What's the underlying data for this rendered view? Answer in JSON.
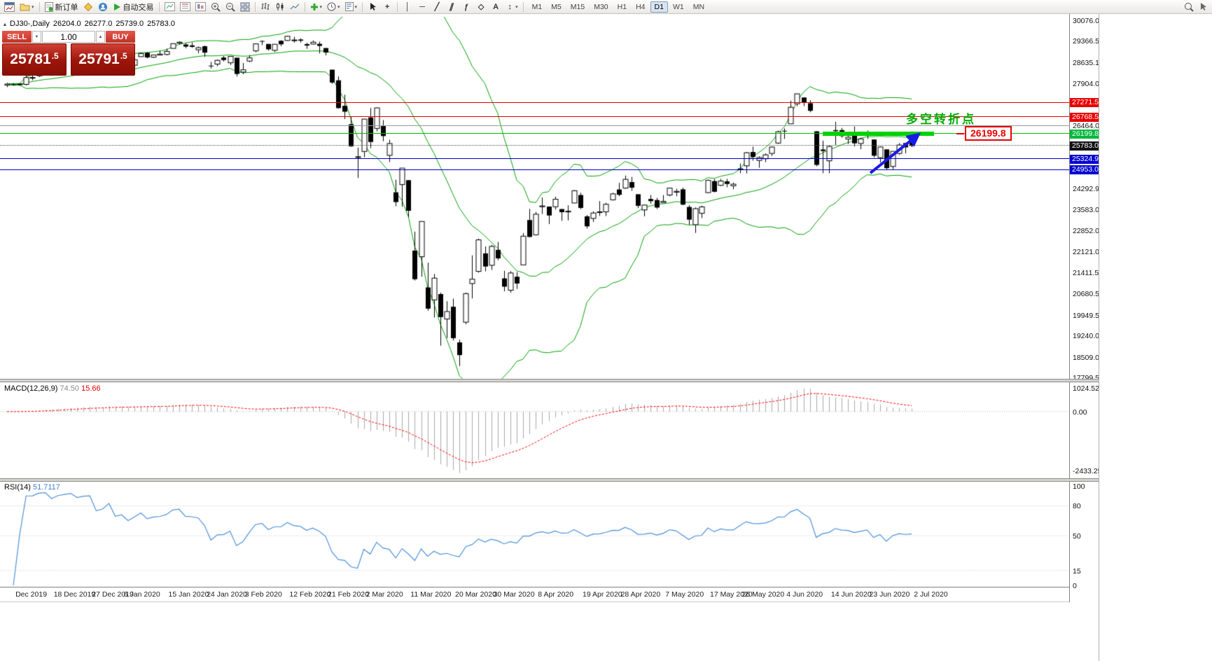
{
  "toolbar": {
    "new_order_label": "新订单",
    "auto_trading_label": "自动交易",
    "timeframes": [
      "M1",
      "M5",
      "M15",
      "M30",
      "H1",
      "H4",
      "D1",
      "W1",
      "MN"
    ],
    "active_timeframe": "D1"
  },
  "icons": {
    "caret": "▾",
    "crosshair": "+",
    "vertical_line": "│",
    "horizontal_line": "─",
    "trendline": "╱",
    "channel": "∥",
    "fibonacci": "ƒ",
    "ellipse": "◇",
    "text": "A",
    "arrows": "↕",
    "spinner_up": "▲",
    "spinner_down": "▼",
    "collapse": "▴"
  },
  "symbol": {
    "name": "DJ30-,Daily",
    "open": "26204.0",
    "high": "26277.0",
    "low": "25739.0",
    "close": "25783.0"
  },
  "trade_panel": {
    "sell_label": "SELL",
    "buy_label": "BUY",
    "volume": "1.00",
    "sell_price": "25781",
    "sell_price_frac": ".5",
    "buy_price": "25791",
    "buy_price_frac": ".5"
  },
  "price_scale": {
    "top": 30076.0,
    "bottom": 17799.5,
    "labels": [
      "30076.0",
      "29366.5",
      "28635.1",
      "27904.0",
      "26464.0",
      "24292.9",
      "23583.0",
      "22852.0",
      "22121.0",
      "21411.5",
      "20680.5",
      "19949.5",
      "19240.0",
      "18509.0",
      "17799.5"
    ],
    "line_labels": [
      {
        "text": "27271.5",
        "price": 27271.5,
        "bg": "#e80000"
      },
      {
        "text": "26768.5",
        "price": 26768.5,
        "bg": "#e80000"
      },
      {
        "text": "26199.8",
        "price": 26199.8,
        "bg": "#00b83c"
      },
      {
        "text": "25783.0",
        "price": 25783.0,
        "bg": "#111111"
      },
      {
        "text": "25324.9",
        "price": 25324.9,
        "bg": "#0000d0"
      },
      {
        "text": "24953.0",
        "price": 24953.0,
        "bg": "#0000d0"
      }
    ]
  },
  "hlines": [
    {
      "price": 27271.5,
      "color": "#e80000",
      "style": "solid",
      "width": 1
    },
    {
      "price": 26768.5,
      "color": "#e80000",
      "style": "solid",
      "width": 1
    },
    {
      "price": 26464.0,
      "color": "#9a9a9a",
      "style": "solid",
      "width": 1
    },
    {
      "price": 26199.8,
      "color": "#00c000",
      "style": "solid",
      "width": 1
    },
    {
      "price": 25783.0,
      "color": "#555555",
      "style": "dotted",
      "width": 1
    },
    {
      "price": 25324.9,
      "color": "#0000d0",
      "style": "solid",
      "width": 1
    },
    {
      "price": 24953.0,
      "color": "#0000d0",
      "style": "solid",
      "width": 1
    }
  ],
  "annotations": {
    "turning_point": {
      "text": "多空转折点",
      "color": "#00ad00"
    },
    "callout": {
      "text": "26199.8",
      "color": "#e80000"
    },
    "green_band": {
      "price": 26199.8,
      "start_index": 128,
      "end_index": 145.5,
      "color": "#00d200"
    },
    "arrow": {
      "start_index": 135.5,
      "start_price": 24850,
      "end_index": 142.9,
      "end_price": 26150,
      "color": "#1a1ae6"
    }
  },
  "macd": {
    "label": "MACD(12,26,9)",
    "value_main": "74.50",
    "value_signal": "15.66",
    "scale_max": "1024.52",
    "scale_zero": "0.00",
    "scale_min": "-2433.25",
    "fast": 12,
    "slow": 26,
    "signal": 9
  },
  "rsi": {
    "label": "RSI(14)",
    "value": "51.7117",
    "period": 14,
    "levels": [
      "100",
      "80",
      "50",
      "15",
      "0"
    ]
  },
  "dates": [
    {
      "label": "Dec 2019",
      "index": 1
    },
    {
      "label": "18 Dec 2019",
      "index": 7
    },
    {
      "label": "27 Dec 2019",
      "index": 13
    },
    {
      "label": "6 Jan 2020",
      "index": 18
    },
    {
      "label": "15 Jan 2020",
      "index": 25
    },
    {
      "label": "24 Jan 2020",
      "index": 31
    },
    {
      "label": "3 Feb 2020",
      "index": 37
    },
    {
      "label": "12 Feb 2020",
      "index": 44
    },
    {
      "label": "21 Feb 2020",
      "index": 50
    },
    {
      "label": "2 Mar 2020",
      "index": 56
    },
    {
      "label": "11 Mar 2020",
      "index": 63
    },
    {
      "label": "20 Mar 2020",
      "index": 70
    },
    {
      "label": "30 Mar 2020",
      "index": 76
    },
    {
      "label": "8 Apr 2020",
      "index": 83
    },
    {
      "label": "19 Apr 2020",
      "index": 90
    },
    {
      "label": "28 Apr 2020",
      "index": 96
    },
    {
      "label": "7 May 2020",
      "index": 103
    },
    {
      "label": "17 May 2020",
      "index": 110
    },
    {
      "label": "26 May 2020",
      "index": 115
    },
    {
      "label": "4 Jun 2020",
      "index": 122
    },
    {
      "label": "14 Jun 2020",
      "index": 129
    },
    {
      "label": "23 Jun 2020",
      "index": 135
    },
    {
      "label": "2 Jul 2020",
      "index": 142
    }
  ],
  "colors": {
    "bollinger": "#00a000",
    "candle_up_fill": "#ffffff",
    "candle_down_fill": "#000000",
    "candle_border": "#000000",
    "macd_hist": "#a9a9a9",
    "macd_signal": "#ff0000",
    "rsi_line": "#4a90d9"
  },
  "candles": [
    [
      27870,
      27950,
      27804,
      27909
    ],
    [
      27900,
      27940,
      27852,
      27881
    ],
    [
      27890,
      27930,
      27850,
      27911
    ],
    [
      27898,
      28225,
      27859,
      28132
    ],
    [
      28123,
      28291,
      28034,
      28135
    ],
    [
      28191,
      28337,
      28150,
      28235
    ],
    [
      28251,
      28338,
      28227,
      28267
    ],
    [
      28278,
      28323,
      28200,
      28239
    ],
    [
      28254,
      28414,
      28254,
      28376
    ],
    [
      28377,
      28480,
      28350,
      28455
    ],
    [
      28479,
      28592,
      28466,
      28551
    ],
    [
      28572,
      28576,
      28503,
      28515
    ],
    [
      28539,
      28624,
      28535,
      28621
    ],
    [
      28651,
      28701,
      28608,
      28645
    ],
    [
      28654,
      28664,
      28428,
      28462
    ],
    [
      28414,
      28547,
      28376,
      28538
    ],
    [
      28639,
      28872,
      28565,
      28868
    ],
    [
      28827,
      28876,
      28566,
      28634
    ],
    [
      28465,
      28708,
      28418,
      28703
    ],
    [
      28699,
      28716,
      28565,
      28583
    ],
    [
      28556,
      28774,
      28522,
      28745
    ],
    [
      28851,
      28988,
      28844,
      28956
    ],
    [
      28985,
      29009,
      28789,
      28823
    ],
    [
      28831,
      28914,
      28804,
      28907
    ],
    [
      28906,
      29054,
      28897,
      28939
    ],
    [
      28925,
      29128,
      28897,
      29030
    ],
    [
      29134,
      29300,
      29134,
      29297
    ],
    [
      29313,
      29374,
      29264,
      29348
    ],
    [
      29269,
      29320,
      29140,
      29196
    ],
    [
      29238,
      29338,
      29161,
      29186
    ],
    [
      29087,
      29200,
      28967,
      29160
    ],
    [
      29209,
      29230,
      28843,
      28989
    ],
    [
      28542,
      28671,
      28440,
      28535
    ],
    [
      28594,
      28750,
      28520,
      28722
    ],
    [
      28820,
      28873,
      28683,
      28734
    ],
    [
      28640,
      28874,
      28561,
      28859
    ],
    [
      28813,
      28813,
      28169,
      28256
    ],
    [
      28320,
      28630,
      28245,
      28399
    ],
    [
      28697,
      28905,
      28660,
      28807
    ],
    [
      29049,
      29308,
      29000,
      29290
    ],
    [
      29389,
      29408,
      29246,
      29379
    ],
    [
      29287,
      29287,
      29056,
      29102
    ],
    [
      29067,
      29277,
      29008,
      29276
    ],
    [
      29396,
      29415,
      29210,
      29276
    ],
    [
      29406,
      29568,
      29394,
      29551
    ],
    [
      29411,
      29535,
      29332,
      29423
    ],
    [
      29440,
      29481,
      29333,
      29398
    ],
    [
      29282,
      29330,
      29120,
      29232
    ],
    [
      29284,
      29409,
      29270,
      29348
    ],
    [
      29291,
      29368,
      28960,
      29220
    ],
    [
      29146,
      29146,
      28893,
      28992
    ],
    [
      28403,
      28403,
      27912,
      27960
    ],
    [
      28037,
      28170,
      27067,
      27081
    ],
    [
      27160,
      27542,
      26704,
      26958
    ],
    [
      26526,
      26775,
      25752,
      25766
    ],
    [
      25391,
      25724,
      24681,
      25409
    ],
    [
      25591,
      26706,
      25392,
      26703
    ],
    [
      26763,
      27085,
      25707,
      25917
    ],
    [
      26384,
      27102,
      26286,
      27090
    ],
    [
      26470,
      26671,
      25944,
      26121
    ],
    [
      25458,
      25994,
      25227,
      25864
    ],
    [
      24188,
      24620,
      23707,
      23851
    ],
    [
      24453,
      25020,
      23690,
      25018
    ],
    [
      24604,
      24604,
      23328,
      23553
    ],
    [
      22184,
      22837,
      21154,
      21200
    ],
    [
      21973,
      23189,
      21285,
      23185
    ],
    [
      20917,
      21768,
      20116,
      20188
    ],
    [
      20489,
      21379,
      19882,
      21237
    ],
    [
      20688,
      20738,
      18917,
      19898
    ],
    [
      19830,
      20442,
      19177,
      20087
    ],
    [
      20253,
      20531,
      19094,
      19173
    ],
    [
      19028,
      19121,
      18213,
      18591
    ],
    [
      19722,
      20737,
      19649,
      20704
    ],
    [
      21050,
      22019,
      20538,
      21200
    ],
    [
      21468,
      22595,
      21427,
      22552
    ],
    [
      22088,
      22327,
      21469,
      21636
    ],
    [
      21678,
      22378,
      21522,
      22327
    ],
    [
      22208,
      22482,
      21852,
      21917
    ],
    [
      21227,
      21487,
      20784,
      20943
    ],
    [
      20819,
      21477,
      20735,
      21413
    ],
    [
      21285,
      21443,
      20863,
      21052
    ],
    [
      21693,
      22783,
      21693,
      22679
    ],
    [
      23233,
      23618,
      22634,
      22653
    ],
    [
      22727,
      23513,
      22702,
      23433
    ],
    [
      23690,
      24009,
      23440,
      23719
    ],
    [
      23698,
      23698,
      23096,
      23390
    ],
    [
      23690,
      24040,
      23592,
      23949
    ],
    [
      23611,
      23612,
      23207,
      23504
    ],
    [
      23523,
      23741,
      23222,
      23537
    ],
    [
      23819,
      24264,
      23819,
      24242
    ],
    [
      24093,
      24170,
      23606,
      23650
    ],
    [
      23361,
      23406,
      22942,
      23018
    ],
    [
      23289,
      23533,
      23168,
      23475
    ],
    [
      23494,
      23885,
      23375,
      23515
    ],
    [
      23516,
      23828,
      23371,
      23775
    ],
    [
      23929,
      24171,
      23905,
      24133
    ],
    [
      24284,
      24512,
      24054,
      24101
    ],
    [
      24331,
      24764,
      24305,
      24633
    ],
    [
      24539,
      24717,
      24235,
      24345
    ],
    [
      24120,
      24120,
      23645,
      23723
    ],
    [
      23581,
      23762,
      23361,
      23749
    ],
    [
      23958,
      24094,
      23795,
      23883
    ],
    [
      23921,
      23994,
      23616,
      23664
    ],
    [
      23836,
      24094,
      23834,
      23875
    ],
    [
      24093,
      24349,
      24050,
      24331
    ],
    [
      24191,
      24307,
      24050,
      24221
    ],
    [
      24289,
      24349,
      23745,
      23764
    ],
    [
      23683,
      23747,
      23069,
      23247
    ],
    [
      23073,
      23666,
      22789,
      23625
    ],
    [
      23465,
      23730,
      23302,
      23685
    ],
    [
      24177,
      24625,
      24160,
      24597
    ],
    [
      24572,
      24646,
      24186,
      24206
    ],
    [
      24427,
      24650,
      24400,
      24575
    ],
    [
      24564,
      24648,
      24361,
      24474
    ],
    [
      24412,
      24522,
      24294,
      24465
    ],
    [
      24994,
      25176,
      24846,
      24995
    ],
    [
      25099,
      25572,
      24834,
      25548
    ],
    [
      25573,
      25758,
      25273,
      25400
    ],
    [
      25283,
      25424,
      25031,
      25383
    ],
    [
      25342,
      25527,
      25225,
      25475
    ],
    [
      25524,
      25763,
      25435,
      25742
    ],
    [
      25880,
      26307,
      25850,
      26269
    ],
    [
      26304,
      26384,
      26022,
      26281
    ],
    [
      26542,
      27338,
      26542,
      27110
    ],
    [
      27232,
      27580,
      27151,
      27572
    ],
    [
      27447,
      27447,
      27151,
      27272
    ],
    [
      27251,
      27355,
      26938,
      26989
    ],
    [
      26282,
      26294,
      25082,
      25128
    ],
    [
      25659,
      25965,
      24843,
      25605
    ],
    [
      25270,
      25793,
      24843,
      25763
    ],
    [
      26326,
      26611,
      25811,
      26289
    ],
    [
      26326,
      26400,
      26068,
      26119
    ],
    [
      26016,
      26154,
      25848,
      26080
    ],
    [
      26213,
      26451,
      25759,
      25871
    ],
    [
      25865,
      26059,
      25667,
      26024
    ],
    [
      26180,
      26314,
      26022,
      26156
    ],
    [
      26003,
      26003,
      25376,
      25445
    ],
    [
      25378,
      25769,
      25209,
      25745
    ],
    [
      25662,
      25662,
      24971,
      25015
    ],
    [
      25075,
      25601,
      24973,
      25595
    ],
    [
      25523,
      25879,
      25475,
      25812
    ],
    [
      25880,
      25880,
      25523,
      25734
    ],
    [
      26204,
      26277,
      25739,
      25783
    ]
  ]
}
